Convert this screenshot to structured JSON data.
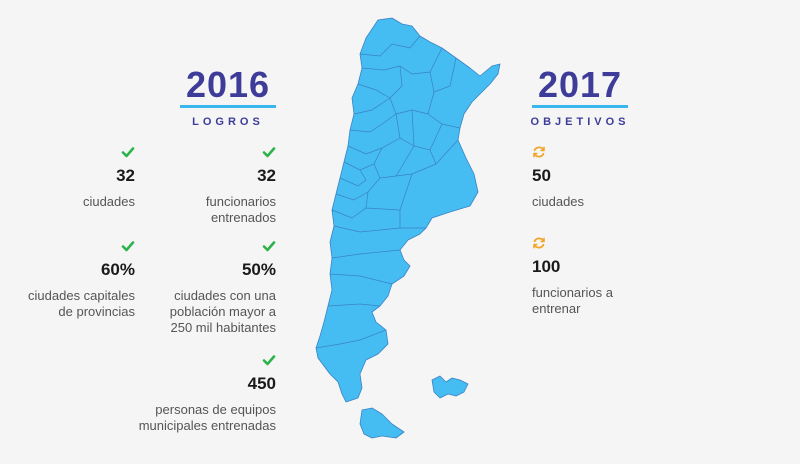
{
  "left": {
    "year": "2016",
    "label": "LOGROS",
    "stats": [
      {
        "value": "32",
        "text": "ciudades"
      },
      {
        "value": "32",
        "text": "funcionarios entrenados"
      },
      {
        "value": "60%",
        "text": "ciudades capitales de provincias"
      },
      {
        "value": "50%",
        "text": "ciudades con una población mayor a 250 mil habitantes"
      },
      {
        "value": "450",
        "text": "personas de equipos municipales entrenadas"
      }
    ],
    "icon": "check-icon"
  },
  "right": {
    "year": "2017",
    "label": "OBJETIVOS",
    "stats": [
      {
        "value": "50",
        "text": "ciudades"
      },
      {
        "value": "100",
        "text": "funcionarios a entrenar"
      }
    ],
    "icon": "refresh-icon"
  },
  "colors": {
    "map_fill": "#45bdf2",
    "map_stroke": "#3b82c4",
    "year": "#3d3c99",
    "accent": "#3ab6ef",
    "check": "#2db34a",
    "refresh": "#f0a62b"
  }
}
